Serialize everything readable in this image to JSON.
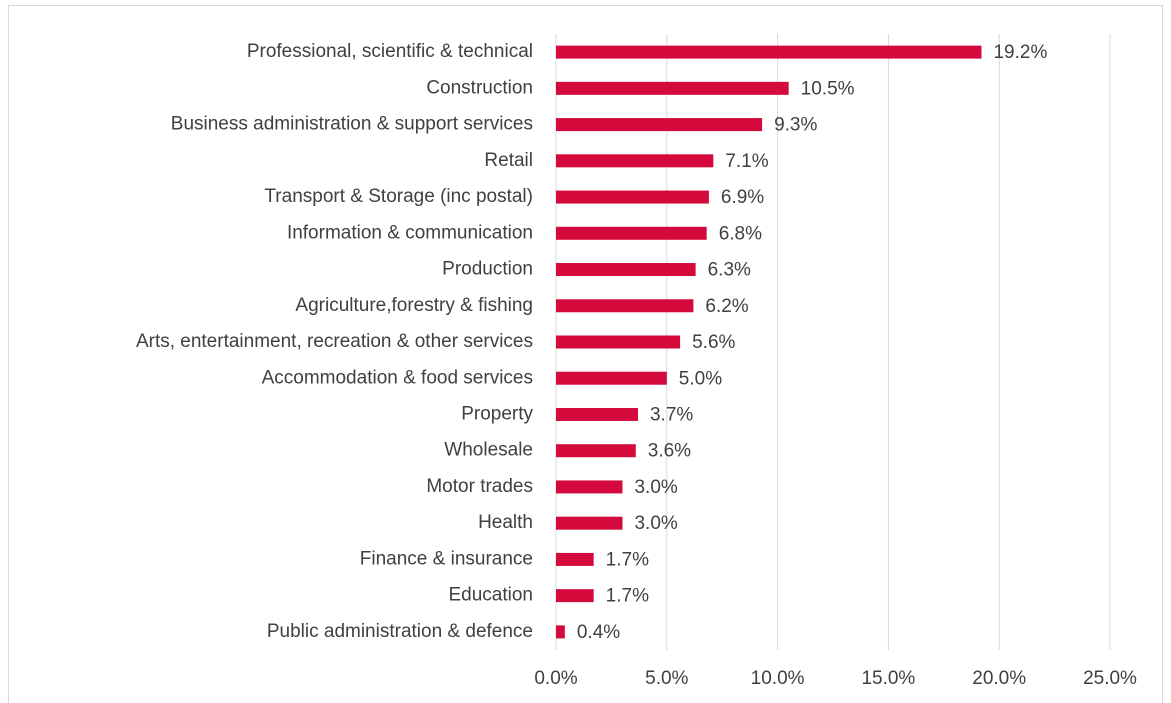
{
  "chart_data": {
    "type": "hbar",
    "categories": [
      "Professional, scientific & technical",
      "Construction",
      "Business administration & support services",
      "Retail",
      "Transport & Storage (inc postal)",
      "Information & communication",
      "Production",
      "Agriculture,forestry & fishing",
      "Arts, entertainment, recreation & other services",
      "Accommodation & food services",
      "Property",
      "Wholesale",
      "Motor trades",
      "Health",
      "Finance & insurance",
      "Education",
      "Public administration & defence"
    ],
    "values": [
      19.2,
      10.5,
      9.3,
      7.1,
      6.9,
      6.8,
      6.3,
      6.2,
      5.6,
      5.0,
      3.7,
      3.6,
      3.0,
      3.0,
      1.7,
      1.7,
      0.4
    ],
    "value_labels": [
      "19.2%",
      "10.5%",
      "9.3%",
      "7.1%",
      "6.9%",
      "6.8%",
      "6.3%",
      "6.2%",
      "5.6%",
      "5.0%",
      "3.7%",
      "3.6%",
      "3.0%",
      "3.0%",
      "1.7%",
      "1.7%",
      "0.4%"
    ],
    "color": "#d50a3c",
    "xlim": [
      0,
      25
    ],
    "xticks": [
      {
        "value": 0,
        "label": "0.0%"
      },
      {
        "value": 5,
        "label": "5.0%"
      },
      {
        "value": 10,
        "label": "10.0%"
      },
      {
        "value": 15,
        "label": "15.0%"
      },
      {
        "value": 20,
        "label": "20.0%"
      },
      {
        "value": 25,
        "label": "25.0%"
      }
    ],
    "grid": true
  }
}
